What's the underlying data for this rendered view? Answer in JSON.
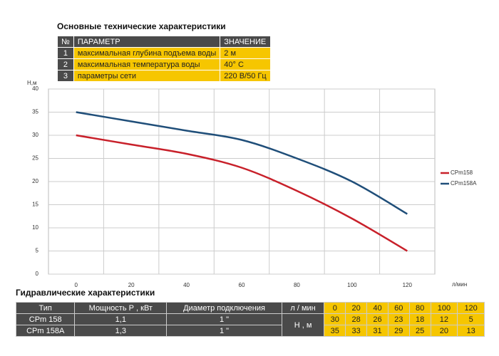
{
  "header": {
    "title": "Основные технические характеристики"
  },
  "specs": {
    "columns": [
      "№",
      "ПАРАМЕТР",
      "ЗНАЧЕНИЕ"
    ],
    "rows": [
      [
        "1",
        "максимальная глубина подъема воды",
        "2 м"
      ],
      [
        "2",
        "максимальная температура воды",
        "40° С"
      ],
      [
        "3",
        "параметры сети",
        "220 В/50 Гц"
      ]
    ]
  },
  "chart_data": {
    "type": "line",
    "y_label": "Н,м",
    "x_label": "л/мин",
    "categories": [
      "0",
      "20",
      "40",
      "60",
      "80",
      "100",
      "120"
    ],
    "series": [
      {
        "name": "CPm158",
        "color": "#c8202a",
        "values": [
          30,
          28,
          26,
          23,
          18,
          12,
          5
        ]
      },
      {
        "name": "CPm158A",
        "color": "#1f4e79",
        "values": [
          35,
          33,
          31,
          29,
          25,
          20,
          13
        ]
      }
    ],
    "ylim": [
      0,
      40
    ],
    "yticks": [
      0,
      5,
      10,
      15,
      20,
      25,
      30,
      35,
      40
    ],
    "grid": true,
    "legend": "right"
  },
  "hydraulics": {
    "title": "Гидравлические характеристики",
    "columns": [
      "Тип",
      "Мощность Р , кВт",
      "Диаметр подключения",
      "л / мин"
    ],
    "unit": "Н , м",
    "rows": [
      [
        "CPm 158",
        "1,1",
        "1 \""
      ],
      [
        "CPm 158A",
        "1,3",
        "1 \""
      ]
    ]
  }
}
